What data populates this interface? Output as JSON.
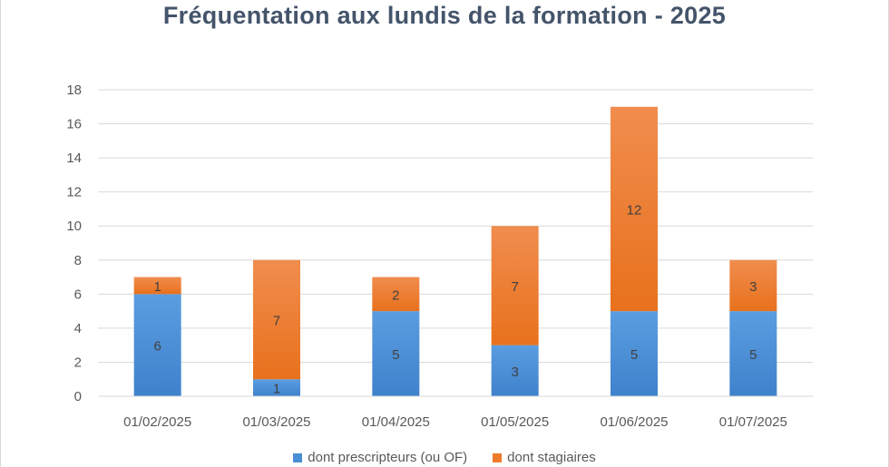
{
  "chart_data": {
    "type": "bar",
    "stacked": true,
    "title": "Fréquentation aux lundis de la formation - 2025",
    "xlabel": "",
    "ylabel": "",
    "categories": [
      "01/02/2025",
      "01/03/2025",
      "01/04/2025",
      "01/05/2025",
      "01/06/2025",
      "01/07/2025"
    ],
    "series": [
      {
        "name": "dont prescripteurs (ou OF)",
        "color": "#4a8fd6",
        "values": [
          6,
          1,
          5,
          3,
          5,
          5
        ]
      },
      {
        "name": "dont stagiaires",
        "color": "#ee7b2c",
        "values": [
          1,
          7,
          2,
          7,
          12,
          3
        ]
      }
    ],
    "ylim": [
      0,
      18
    ],
    "yticks": [
      0,
      2,
      4,
      6,
      8,
      10,
      12,
      14,
      16,
      18
    ],
    "grid": true,
    "legend_position": "bottom"
  }
}
